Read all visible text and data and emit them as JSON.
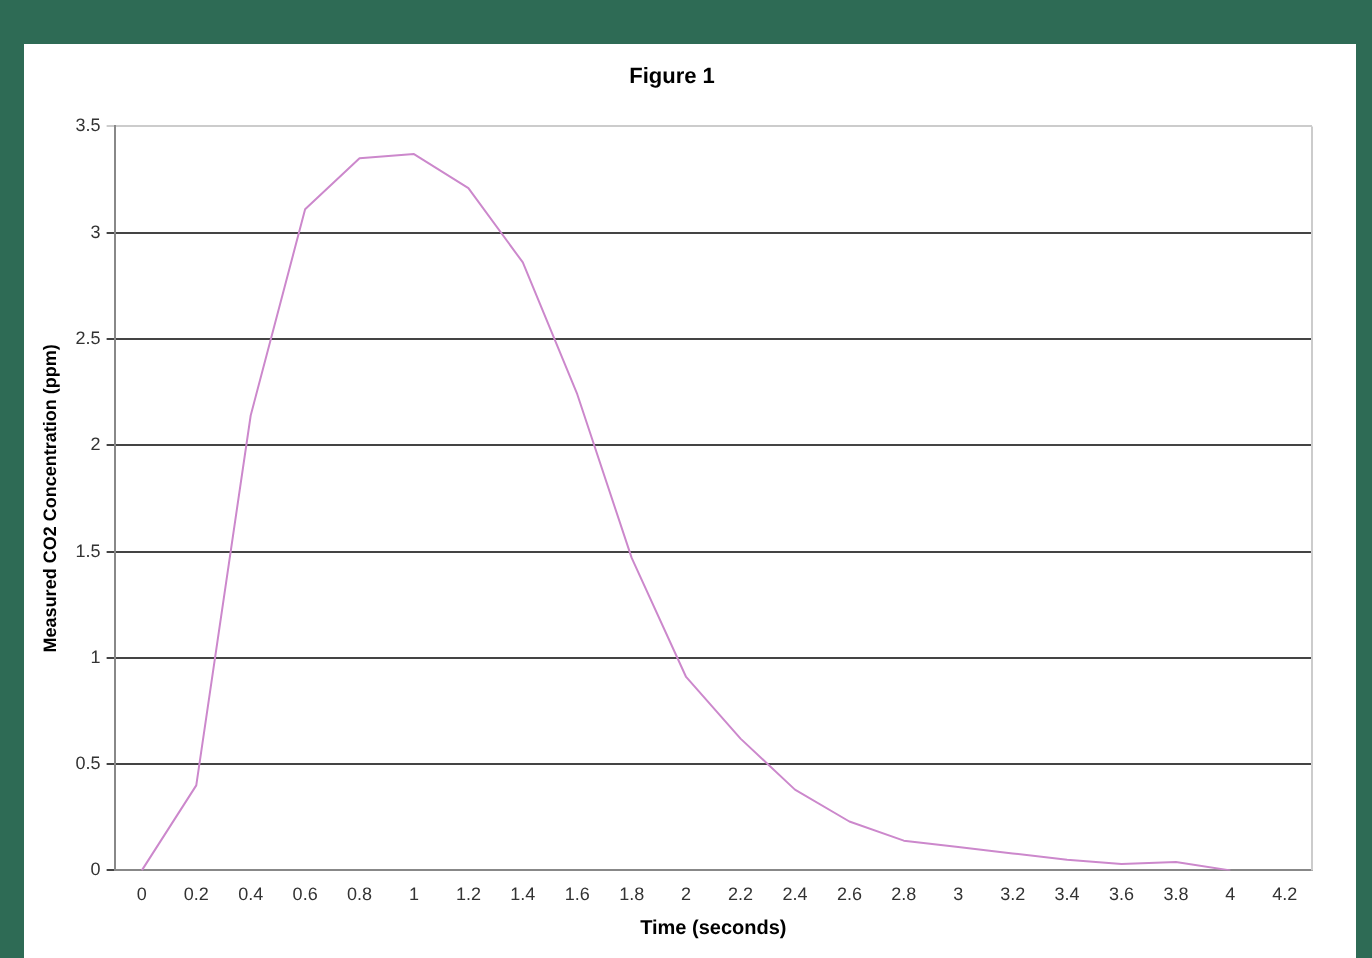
{
  "chart_data": {
    "type": "line",
    "title": "Figure 1",
    "xlabel": "Time (seconds)",
    "ylabel": "Measured CO2 Concentration (ppm)",
    "categories": [
      "0",
      "0.2",
      "0.4",
      "0.6",
      "0.8",
      "1",
      "1.2",
      "1.4",
      "1.6",
      "1.8",
      "2",
      "2.2",
      "2.4",
      "2.6",
      "2.8",
      "3",
      "3.2",
      "3.4",
      "3.6",
      "3.8",
      "4",
      "4.2"
    ],
    "series": [
      {
        "color": "#cc88cc",
        "values": [
          0,
          0.4,
          2.14,
          3.11,
          3.35,
          3.37,
          3.21,
          2.86,
          2.24,
          1.47,
          0.91,
          0.62,
          0.38,
          0.23,
          0.14,
          0.11,
          0.08,
          0.05,
          0.03,
          0.04,
          0,
          null
        ]
      }
    ],
    "ylim": [
      0,
      3.5
    ],
    "yticks": [
      0,
      0.5,
      1,
      1.5,
      2,
      2.5,
      3,
      3.5
    ],
    "grid": "y",
    "legend": false,
    "marker": "none",
    "line_style": "solid"
  }
}
